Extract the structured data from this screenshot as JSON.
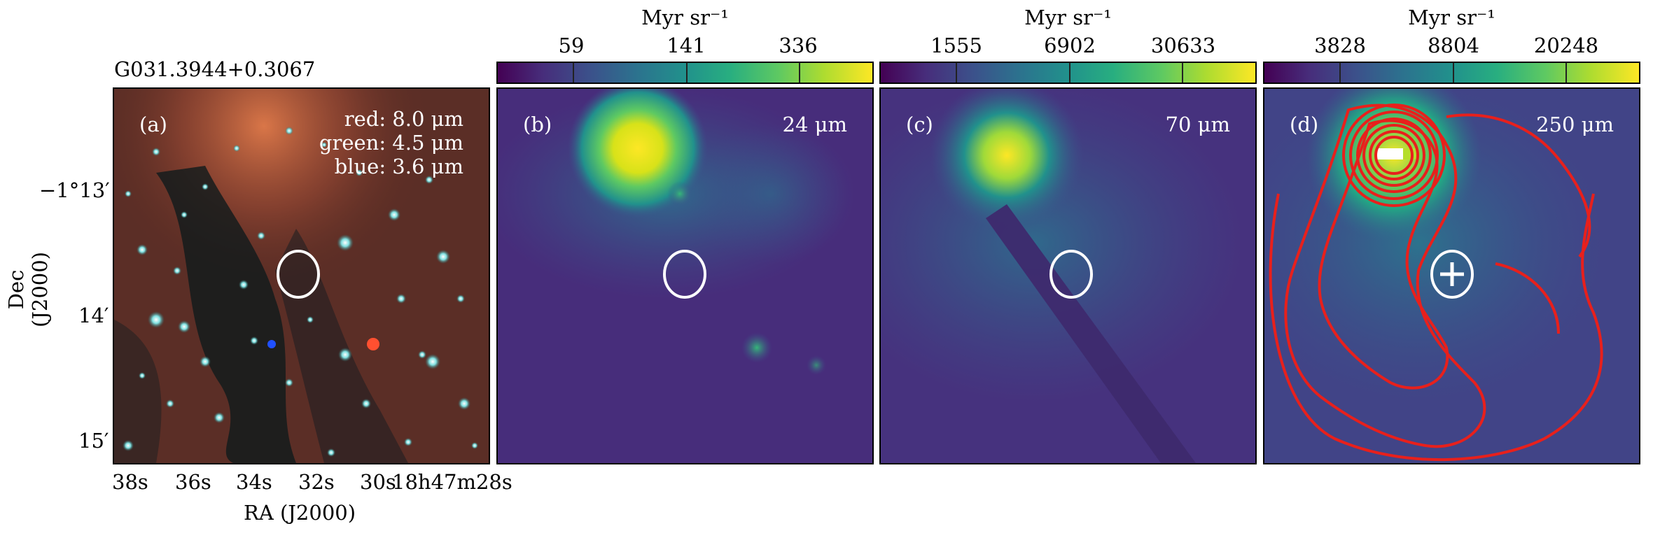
{
  "figure": {
    "source_name": "G031.3944+0.3067",
    "panels": [
      {
        "label": "(a)",
        "rgb": [
          "red: 8.0 μm",
          "green: 4.5 μm",
          "blue: 3.6 μm"
        ]
      },
      {
        "label": "(b)",
        "band": "24 μm"
      },
      {
        "label": "(c)",
        "band": "70 μm"
      },
      {
        "label": "(d)",
        "band": "250 μm"
      }
    ],
    "colorbars": [
      {
        "unit": "Myr sr⁻¹",
        "ticks": [
          "59",
          "141",
          "336"
        ]
      },
      {
        "unit": "Myr sr⁻¹",
        "ticks": [
          "1555",
          "6902",
          "30633"
        ]
      },
      {
        "unit": "Myr sr⁻¹",
        "ticks": [
          "3828",
          "8804",
          "20248"
        ]
      }
    ],
    "axes": {
      "xlabel": "RA (J2000)",
      "ylabel": "Dec (J2000)",
      "ra_ticks": [
        "38s",
        "36s",
        "34s",
        "32s",
        "30s",
        "18h47m28s"
      ],
      "dec_ticks": [
        "−1°13′",
        "14′",
        "15′"
      ]
    },
    "colors": {
      "ellipse": "#ffffff",
      "contour": "#e8201c",
      "marker": "#ffffff"
    }
  }
}
